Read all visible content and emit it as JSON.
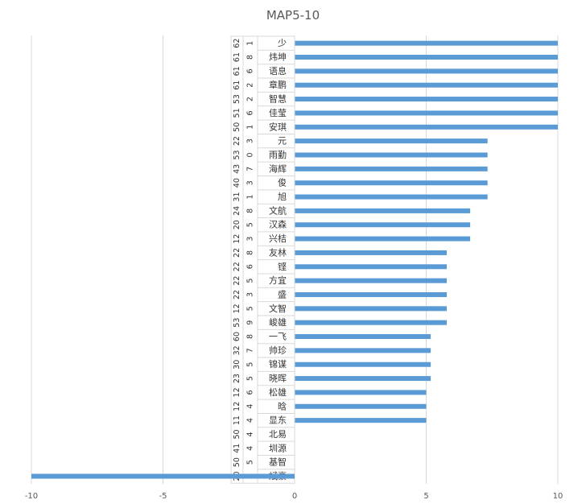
{
  "colors": {
    "bar": "#5b9bd5",
    "grid": "#d9d9d9",
    "text": "#595959"
  },
  "chart_data": {
    "type": "bar",
    "orientation": "horizontal",
    "title": "MAP5-10",
    "xlim": [
      -10,
      10
    ],
    "xticks": [
      "-10",
      "-5",
      "0",
      "5",
      "10"
    ],
    "grid": "vertical",
    "legend": "none",
    "categories": [
      {
        "a": "62",
        "b": "1",
        "name": "少"
      },
      {
        "a": "61",
        "b": "8",
        "name": "炜坤"
      },
      {
        "a": "61",
        "b": "6",
        "name": "语息"
      },
      {
        "a": "61",
        "b": "2",
        "name": "章鹏"
      },
      {
        "a": "53",
        "b": "2",
        "name": "智慧"
      },
      {
        "a": "51",
        "b": "6",
        "name": "佳莹"
      },
      {
        "a": "50",
        "b": "1",
        "name": "安琪"
      },
      {
        "a": "22",
        "b": "3",
        "name": "元"
      },
      {
        "a": "53",
        "b": "0",
        "name": "雨勤"
      },
      {
        "a": "43",
        "b": "7",
        "name": "海辉"
      },
      {
        "a": "40",
        "b": "3",
        "name": "俊"
      },
      {
        "a": "31",
        "b": "1",
        "name": "旭"
      },
      {
        "a": "24",
        "b": "8",
        "name": "文航"
      },
      {
        "a": "20",
        "b": "5",
        "name": "汉森"
      },
      {
        "a": "12",
        "b": "3",
        "name": "兴桔"
      },
      {
        "a": "22",
        "b": "8",
        "name": "友林"
      },
      {
        "a": "22",
        "b": "6",
        "name": "铿"
      },
      {
        "a": "22",
        "b": "5",
        "name": "方宜"
      },
      {
        "a": "22",
        "b": "3",
        "name": "盛"
      },
      {
        "a": "12",
        "b": "5",
        "name": "文智"
      },
      {
        "a": "53",
        "b": "9",
        "name": "峻雄"
      },
      {
        "a": "60",
        "b": "8",
        "name": "一飞"
      },
      {
        "a": "32",
        "b": "7",
        "name": "帅珍"
      },
      {
        "a": "30",
        "b": "5",
        "name": "锦谋"
      },
      {
        "a": "23",
        "b": "5",
        "name": "晓晖"
      },
      {
        "a": "12",
        "b": "6",
        "name": "松雄"
      },
      {
        "a": "12",
        "b": "4",
        "name": "晗"
      },
      {
        "a": "11",
        "b": "4",
        "name": "显东"
      },
      {
        "a": "50",
        "b": "4",
        "name": "北易"
      },
      {
        "a": "41",
        "b": "4",
        "name": "圳源"
      },
      {
        "a": "50",
        "b": "5",
        "name": "基智"
      },
      {
        "a": "20",
        "b": "4",
        "name": "斌豪"
      }
    ],
    "values": [
      10,
      10,
      10,
      10,
      10,
      10,
      10,
      7.33,
      7.33,
      7.33,
      7.33,
      7.33,
      6.67,
      6.67,
      6.67,
      5.78,
      5.78,
      5.78,
      5.78,
      5.78,
      5.78,
      5.17,
      5.17,
      5.17,
      5.17,
      5,
      5,
      5,
      0,
      0,
      0,
      -10
    ]
  }
}
